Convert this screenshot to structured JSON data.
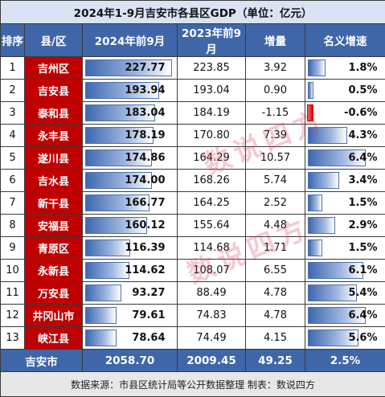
{
  "title": "2024年1-9月吉安市各县区GDP（单位：亿元）",
  "headers": {
    "rank": "排序",
    "county": "县/区",
    "y2024": "2024年前9月",
    "y2023": "2023年前9月",
    "increase": "增量",
    "growth": "名义增速"
  },
  "rows": [
    {
      "rank": "1",
      "name": "吉州区",
      "v2024": "227.77",
      "v2023": "223.85",
      "inc": "3.92",
      "rate": "1.8%",
      "rate_value": 1.8
    },
    {
      "rank": "2",
      "name": "吉安县",
      "v2024": "193.94",
      "v2023": "193.04",
      "inc": "0.90",
      "rate": "0.5%",
      "rate_value": 0.5
    },
    {
      "rank": "3",
      "name": "泰和县",
      "v2024": "183.04",
      "v2023": "184.19",
      "inc": "-1.15",
      "rate": "-0.6%",
      "rate_value": -0.6
    },
    {
      "rank": "4",
      "name": "永丰县",
      "v2024": "178.19",
      "v2023": "170.80",
      "inc": "7.39",
      "rate": "4.3%",
      "rate_value": 4.3
    },
    {
      "rank": "5",
      "name": "遂川县",
      "v2024": "174.86",
      "v2023": "164.29",
      "inc": "10.57",
      "rate": "6.4%",
      "rate_value": 6.4
    },
    {
      "rank": "6",
      "name": "吉水县",
      "v2024": "174.00",
      "v2023": "168.26",
      "inc": "5.74",
      "rate": "3.4%",
      "rate_value": 3.4
    },
    {
      "rank": "7",
      "name": "新干县",
      "v2024": "166.77",
      "v2023": "164.25",
      "inc": "2.52",
      "rate": "1.5%",
      "rate_value": 1.5
    },
    {
      "rank": "8",
      "name": "安福县",
      "v2024": "160.12",
      "v2023": "155.64",
      "inc": "4.48",
      "rate": "2.9%",
      "rate_value": 2.9
    },
    {
      "rank": "9",
      "name": "青原区",
      "v2024": "116.39",
      "v2023": "114.68",
      "inc": "1.71",
      "rate": "1.5%",
      "rate_value": 1.5
    },
    {
      "rank": "10",
      "name": "永新县",
      "v2024": "114.62",
      "v2023": "108.07",
      "inc": "6.55",
      "rate": "6.1%",
      "rate_value": 6.1
    },
    {
      "rank": "11",
      "name": "万安县",
      "v2024": "93.27",
      "v2023": "88.49",
      "inc": "4.78",
      "rate": "5.4%",
      "rate_value": 5.4
    },
    {
      "rank": "12",
      "name": "井冈山市",
      "v2024": "79.61",
      "v2023": "74.83",
      "inc": "4.78",
      "rate": "6.4%",
      "rate_value": 6.4
    },
    {
      "rank": "13",
      "name": "峡江县",
      "v2024": "78.64",
      "v2023": "74.49",
      "inc": "4.15",
      "rate": "5.6%",
      "rate_value": 5.6
    }
  ],
  "total": {
    "name": "吉安市",
    "v2024": "2058.70",
    "v2023": "2009.45",
    "inc": "49.25",
    "rate": "2.5%"
  },
  "footer": "数据来源：市县区统计局等公开数据整理    制表：数说四方",
  "watermark": "数说四方",
  "colors": {
    "header_bg": "#3f66a8",
    "name_bg": "#c00000",
    "bar_blue": "#3e68b0",
    "bar_neg": "#d40000"
  }
}
